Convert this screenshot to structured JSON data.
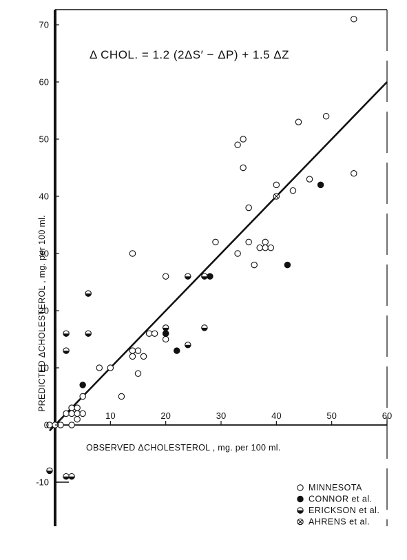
{
  "chart_data": {
    "type": "scatter",
    "equation": "Δ CHOL. = 1.2 (2ΔS′ − ΔP) + 1.5 ΔZ",
    "xlabel": "OBSERVED ΔCHOLESTEROL , mg. per 100 ml.",
    "ylabel": "PREDICTED ΔCHOLESTEROL , mg. per 100 ml.",
    "xlim": [
      0,
      60
    ],
    "ylim": [
      -10,
      75
    ],
    "x_ticks": [
      {
        "value": 10,
        "label": "10"
      },
      {
        "value": 20,
        "label": "20"
      },
      {
        "value": 30,
        "label": "30"
      },
      {
        "value": 40,
        "label": "40"
      },
      {
        "value": 50,
        "label": "50"
      },
      {
        "value": 60,
        "label": "60"
      }
    ],
    "y_ticks": [
      {
        "value": -10,
        "label": "-10"
      },
      {
        "value": 0,
        "label": "0"
      },
      {
        "value": 10,
        "label": "10"
      },
      {
        "value": 20,
        "label": "20"
      },
      {
        "value": 30,
        "label": "30"
      },
      {
        "value": 40,
        "label": "40"
      },
      {
        "value": 50,
        "label": "50"
      },
      {
        "value": 60,
        "label": "60"
      },
      {
        "value": 70,
        "label": "70"
      }
    ],
    "regression_line": {
      "x": [
        -1,
        60
      ],
      "y": [
        -1,
        60
      ]
    },
    "legend_position": "bottom-right",
    "series": [
      {
        "name": "MINNESOTA",
        "marker": "open-circle",
        "points": [
          [
            -1,
            0
          ],
          [
            0,
            0
          ],
          [
            1,
            0
          ],
          [
            2,
            2
          ],
          [
            3,
            0
          ],
          [
            3,
            2
          ],
          [
            3,
            3
          ],
          [
            4,
            1
          ],
          [
            4,
            2
          ],
          [
            4,
            3
          ],
          [
            5,
            2
          ],
          [
            5,
            5
          ],
          [
            8,
            10
          ],
          [
            10,
            10
          ],
          [
            12,
            5
          ],
          [
            14,
            13
          ],
          [
            14,
            12
          ],
          [
            14,
            30
          ],
          [
            15,
            13
          ],
          [
            15,
            9
          ],
          [
            16,
            12
          ],
          [
            17,
            16
          ],
          [
            18,
            16
          ],
          [
            20,
            15
          ],
          [
            20,
            16
          ],
          [
            20,
            26
          ],
          [
            29,
            32
          ],
          [
            33,
            30
          ],
          [
            33,
            49
          ],
          [
            34,
            50
          ],
          [
            34,
            45
          ],
          [
            35,
            32
          ],
          [
            35,
            38
          ],
          [
            36,
            28
          ],
          [
            37,
            31
          ],
          [
            38,
            32
          ],
          [
            38,
            31
          ],
          [
            39,
            31
          ],
          [
            40,
            42
          ],
          [
            43,
            41
          ],
          [
            44,
            53
          ],
          [
            46,
            43
          ],
          [
            49,
            54
          ],
          [
            54,
            44
          ],
          [
            54,
            71
          ]
        ]
      },
      {
        "name": "CONNOR et al.",
        "marker": "filled-circle",
        "points": [
          [
            5,
            7
          ],
          [
            20,
            16
          ],
          [
            22,
            13
          ],
          [
            28,
            26
          ],
          [
            42,
            28
          ],
          [
            48,
            42
          ]
        ]
      },
      {
        "name": "ERICKSON et al.",
        "marker": "half-filled-circle",
        "points": [
          [
            -1,
            -8
          ],
          [
            2,
            -9
          ],
          [
            3,
            -9
          ],
          [
            2,
            13
          ],
          [
            2,
            16
          ],
          [
            6,
            16
          ],
          [
            6,
            23
          ],
          [
            20,
            17
          ],
          [
            24,
            14
          ],
          [
            24,
            26
          ],
          [
            27,
            17
          ],
          [
            27,
            26
          ]
        ]
      },
      {
        "name": "AHRENS et al.",
        "marker": "crossed-circle",
        "points": [
          [
            40,
            40
          ]
        ]
      }
    ]
  }
}
